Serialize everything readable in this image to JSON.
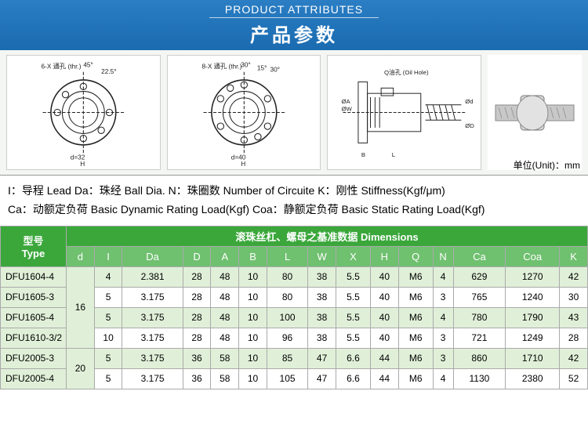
{
  "header": {
    "en": "PRODUCT ATTRIBUTES",
    "cn": "产品参数"
  },
  "unit_label": "单位(Unit)：mm",
  "diagram_labels": {
    "d1": "6-X 通孔\n(thr.)",
    "a45": "45°",
    "a22": "22.5°",
    "H": "H",
    "d32": "d=32",
    "d2": "8-X 通孔\n(thr.)",
    "a30": "30°",
    "a15": "15°",
    "d40": "d=40",
    "oil": "Q油孔\n(Oil Hole)",
    "OA": "ØA",
    "OW": "ØW",
    "B": "B",
    "L": "L",
    "Od": "Ød",
    "OD": "ØD"
  },
  "legend": {
    "line1": "I：导程 Lead Da：珠经 Ball Dia. N：珠圈数 Number of Circuite K：刚性 Stiffness(Kgf/μm)",
    "line2": "Ca：动额定负荷 Basic Dynamic Rating Load(Kgf) Coa：静额定负荷 Basic Static Rating Load(Kgf)"
  },
  "table": {
    "type_hdr_cn": "型号",
    "type_hdr_en": "Type",
    "dim_hdr": "滚珠丝杠、螺母之基准数据 Dimensions",
    "cols": [
      "d",
      "I",
      "Da",
      "D",
      "A",
      "B",
      "L",
      "W",
      "X",
      "H",
      "Q",
      "N",
      "Ca",
      "Coa",
      "K"
    ],
    "rows": [
      {
        "type": "DFU1604-4",
        "d": "",
        "vals": [
          "4",
          "2.381",
          "28",
          "48",
          "10",
          "80",
          "38",
          "5.5",
          "40",
          "M6",
          "4",
          "629",
          "1270",
          "42"
        ],
        "alt": true
      },
      {
        "type": "DFU1605-3",
        "d": "",
        "vals": [
          "5",
          "3.175",
          "28",
          "48",
          "10",
          "80",
          "38",
          "5.5",
          "40",
          "M6",
          "3",
          "765",
          "1240",
          "30"
        ],
        "alt": false
      },
      {
        "type": "DFU1605-4",
        "d": "16",
        "vals": [
          "5",
          "3.175",
          "28",
          "48",
          "10",
          "100",
          "38",
          "5.5",
          "40",
          "M6",
          "4",
          "780",
          "1790",
          "43"
        ],
        "alt": true
      },
      {
        "type": "DFU1610-3/2",
        "d": "",
        "vals": [
          "10",
          "3.175",
          "28",
          "48",
          "10",
          "96",
          "38",
          "5.5",
          "40",
          "M6",
          "3",
          "721",
          "1249",
          "28"
        ],
        "alt": false
      },
      {
        "type": "DFU2005-3",
        "d": "",
        "vals": [
          "5",
          "3.175",
          "36",
          "58",
          "10",
          "85",
          "47",
          "6.6",
          "44",
          "M6",
          "3",
          "860",
          "1710",
          "42"
        ],
        "alt": true
      },
      {
        "type": "DFU2005-4",
        "d": "20",
        "vals": [
          "5",
          "3.175",
          "36",
          "58",
          "10",
          "105",
          "47",
          "6.6",
          "44",
          "M6",
          "4",
          "1130",
          "2380",
          "52"
        ],
        "alt": false
      }
    ],
    "d_rowspan1": 4,
    "d_rowspan2": 2,
    "d_val1": "16",
    "d_val2": "20"
  },
  "colors": {
    "banner": "#1a6bb0",
    "green1": "#3ba73b",
    "green2": "#6fc06f",
    "alt_row": "#e0f0d8",
    "border": "#aaaaaa"
  }
}
